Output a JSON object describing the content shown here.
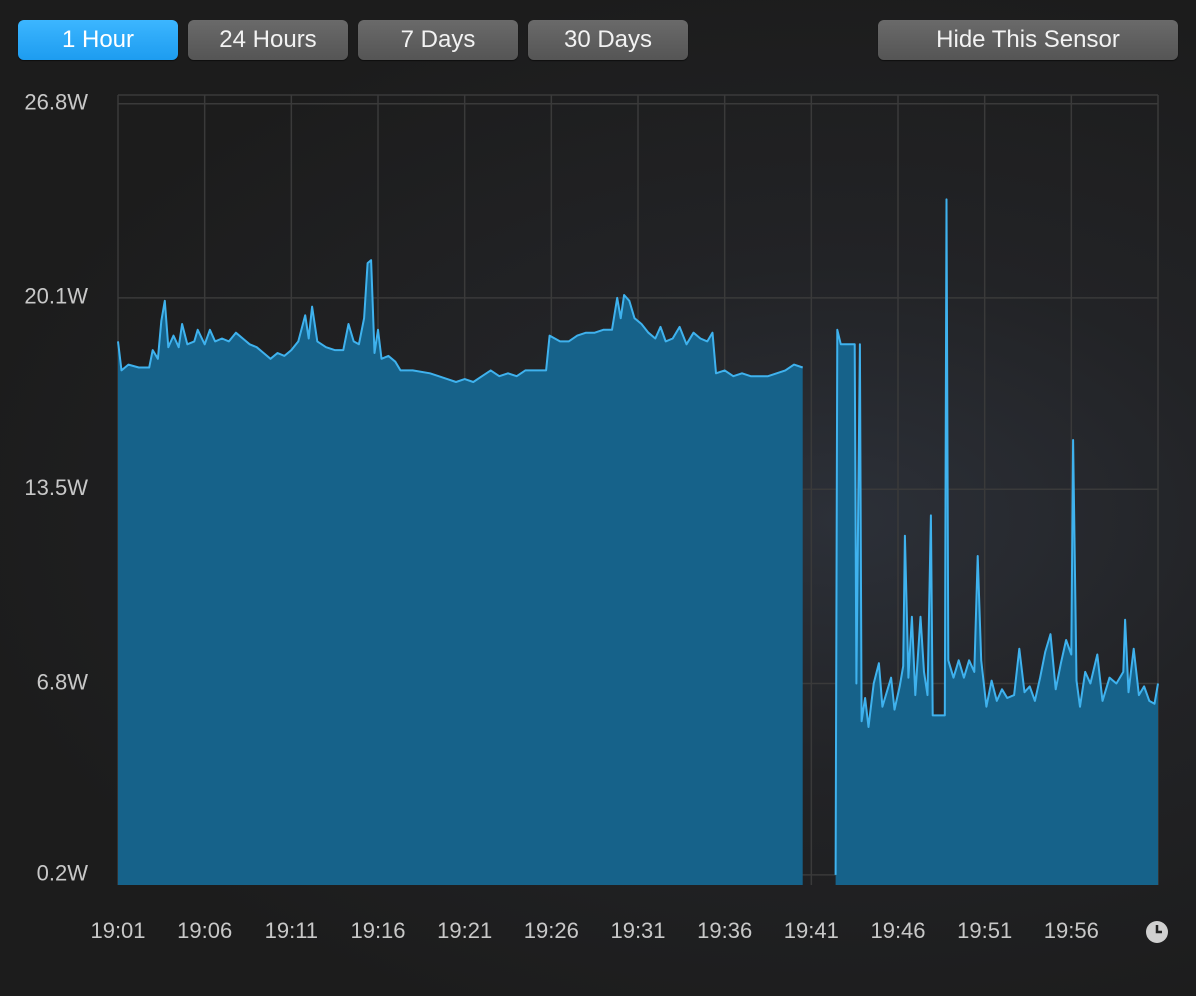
{
  "buttons": [
    "1 Hour",
    "24 Hours",
    "7 Days",
    "30 Days"
  ],
  "selected": 0,
  "hide_button": "Hide This Sensor",
  "chart_data": {
    "type": "area",
    "color": "#3fb2ee",
    "fill_color": "#16628a",
    "grid": true,
    "x": [
      1141,
      1141.2,
      1141.6,
      1142.2,
      1142.8,
      1143,
      1143.3,
      1143.5,
      1143.7,
      1143.9,
      1144.2,
      1144.5,
      1144.7,
      1145,
      1145.4,
      1145.6,
      1146,
      1146.3,
      1146.6,
      1147,
      1147.4,
      1147.8,
      1148.2,
      1148.6,
      1149,
      1149.4,
      1149.8,
      1150.2,
      1150.6,
      1151,
      1151.4,
      1151.8,
      1152,
      1152.2,
      1152.5,
      1153,
      1153.5,
      1154,
      1154.3,
      1154.6,
      1154.9,
      1155.2,
      1155.4,
      1155.6,
      1155.8,
      1156,
      1156.2,
      1156.6,
      1157,
      1157.3,
      1158,
      1159,
      1159.5,
      1160,
      1160.5,
      1161,
      1161.5,
      1162,
      1162.5,
      1163,
      1163.5,
      1164,
      1164.5,
      1165,
      1165.7,
      1165.9,
      1166.5,
      1167,
      1167.5,
      1168,
      1168.5,
      1169,
      1169.5,
      1169.8,
      1170,
      1170.2,
      1170.5,
      1170.8,
      1171.2,
      1171.6,
      1172,
      1172.3,
      1172.6,
      1173,
      1173.4,
      1173.8,
      1174.2,
      1174.6,
      1175,
      1175.3,
      1175.5,
      1176,
      1176.5,
      1177,
      1177.5,
      1178,
      1178.5,
      1179,
      1179.5,
      1180,
      1180.5,
      1181.5,
      1182.4,
      1182.5,
      1182.7,
      1183.3,
      1183.5,
      1183.6,
      1183.8,
      1183.9,
      1184.1,
      1184.3,
      1184.6,
      1184.9,
      1185.1,
      1185.4,
      1185.6,
      1185.8,
      1186.1,
      1186.3,
      1186.4,
      1186.6,
      1186.8,
      1187,
      1187.3,
      1187.5,
      1187.7,
      1187.9,
      1188,
      1188.3,
      1188.7,
      1188.8,
      1188.9,
      1189.2,
      1189.5,
      1189.8,
      1190.1,
      1190.4,
      1190.6,
      1190.8,
      1191.1,
      1191.4,
      1191.7,
      1192,
      1192.3,
      1192.7,
      1193,
      1193.3,
      1193.6,
      1193.9,
      1194.2,
      1194.5,
      1194.8,
      1195.1,
      1195.4,
      1195.7,
      1196,
      1196.1,
      1196.3,
      1196.5,
      1196.8,
      1197.1,
      1197.5,
      1197.8,
      1198.2,
      1198.6,
      1199,
      1199.1,
      1199.3,
      1199.6,
      1199.9,
      1200.2,
      1200.5,
      1200.8,
      1201
    ],
    "values": [
      18.6,
      17.6,
      17.8,
      17.7,
      17.7,
      18.3,
      18.0,
      19.3,
      20.0,
      18.4,
      18.8,
      18.4,
      19.2,
      18.5,
      18.6,
      19.0,
      18.5,
      19.0,
      18.6,
      18.7,
      18.6,
      18.9,
      18.7,
      18.5,
      18.4,
      18.2,
      18.0,
      18.2,
      18.1,
      18.3,
      18.6,
      19.5,
      18.7,
      19.8,
      18.6,
      18.4,
      18.3,
      18.3,
      19.2,
      18.6,
      18.5,
      19.4,
      21.3,
      21.4,
      18.2,
      19.0,
      18.0,
      18.1,
      17.9,
      17.6,
      17.6,
      17.5,
      17.4,
      17.3,
      17.2,
      17.3,
      17.2,
      17.4,
      17.6,
      17.4,
      17.5,
      17.4,
      17.6,
      17.6,
      17.6,
      18.8,
      18.6,
      18.6,
      18.8,
      18.9,
      18.9,
      19.0,
      19.0,
      20.1,
      19.4,
      20.2,
      20.0,
      19.4,
      19.2,
      18.9,
      18.7,
      19.1,
      18.6,
      18.7,
      19.1,
      18.5,
      18.9,
      18.7,
      18.6,
      18.9,
      17.5,
      17.6,
      17.4,
      17.5,
      17.4,
      17.4,
      17.4,
      17.5,
      17.6,
      17.8,
      17.7,
      null,
      0.2,
      19.0,
      18.5,
      18.5,
      18.5,
      6.8,
      18.5,
      5.5,
      6.3,
      5.3,
      6.8,
      7.5,
      6.0,
      6.6,
      7.0,
      5.9,
      6.7,
      7.4,
      11.9,
      7.0,
      9.1,
      6.4,
      9.1,
      7.2,
      6.4,
      12.6,
      5.7,
      5.7,
      5.7,
      23.5,
      7.6,
      7.0,
      7.6,
      7.0,
      7.6,
      7.2,
      11.2,
      7.6,
      6.0,
      6.9,
      6.2,
      6.6,
      6.3,
      6.4,
      8.0,
      6.5,
      6.7,
      6.2,
      7.0,
      7.9,
      8.5,
      6.6,
      7.5,
      8.3,
      7.8,
      15.2,
      6.9,
      6.0,
      7.2,
      6.8,
      7.8,
      6.2,
      7.0,
      6.8,
      7.2,
      9.0,
      6.5,
      8.0,
      6.4,
      6.7,
      6.2,
      6.1,
      6.8
    ],
    "xlim": [
      1141,
      1201
    ],
    "xticks": [
      {
        "value": 1141,
        "label": "19:01"
      },
      {
        "value": 1146,
        "label": "19:06"
      },
      {
        "value": 1151,
        "label": "19:11"
      },
      {
        "value": 1156,
        "label": "19:16"
      },
      {
        "value": 1161,
        "label": "19:21"
      },
      {
        "value": 1166,
        "label": "19:26"
      },
      {
        "value": 1171,
        "label": "19:31"
      },
      {
        "value": 1176,
        "label": "19:36"
      },
      {
        "value": 1181,
        "label": "19:41"
      },
      {
        "value": 1186,
        "label": "19:46"
      },
      {
        "value": 1191,
        "label": "19:51"
      },
      {
        "value": 1196,
        "label": "19:56"
      }
    ],
    "ylim": [
      -0.15,
      27.1
    ],
    "yticks": [
      {
        "value": 0.2,
        "label": "0.2W"
      },
      {
        "value": 6.8,
        "label": "6.8W"
      },
      {
        "value": 13.5,
        "label": "13.5W"
      },
      {
        "value": 20.1,
        "label": "20.1W"
      },
      {
        "value": 26.8,
        "label": "26.8W"
      }
    ]
  }
}
